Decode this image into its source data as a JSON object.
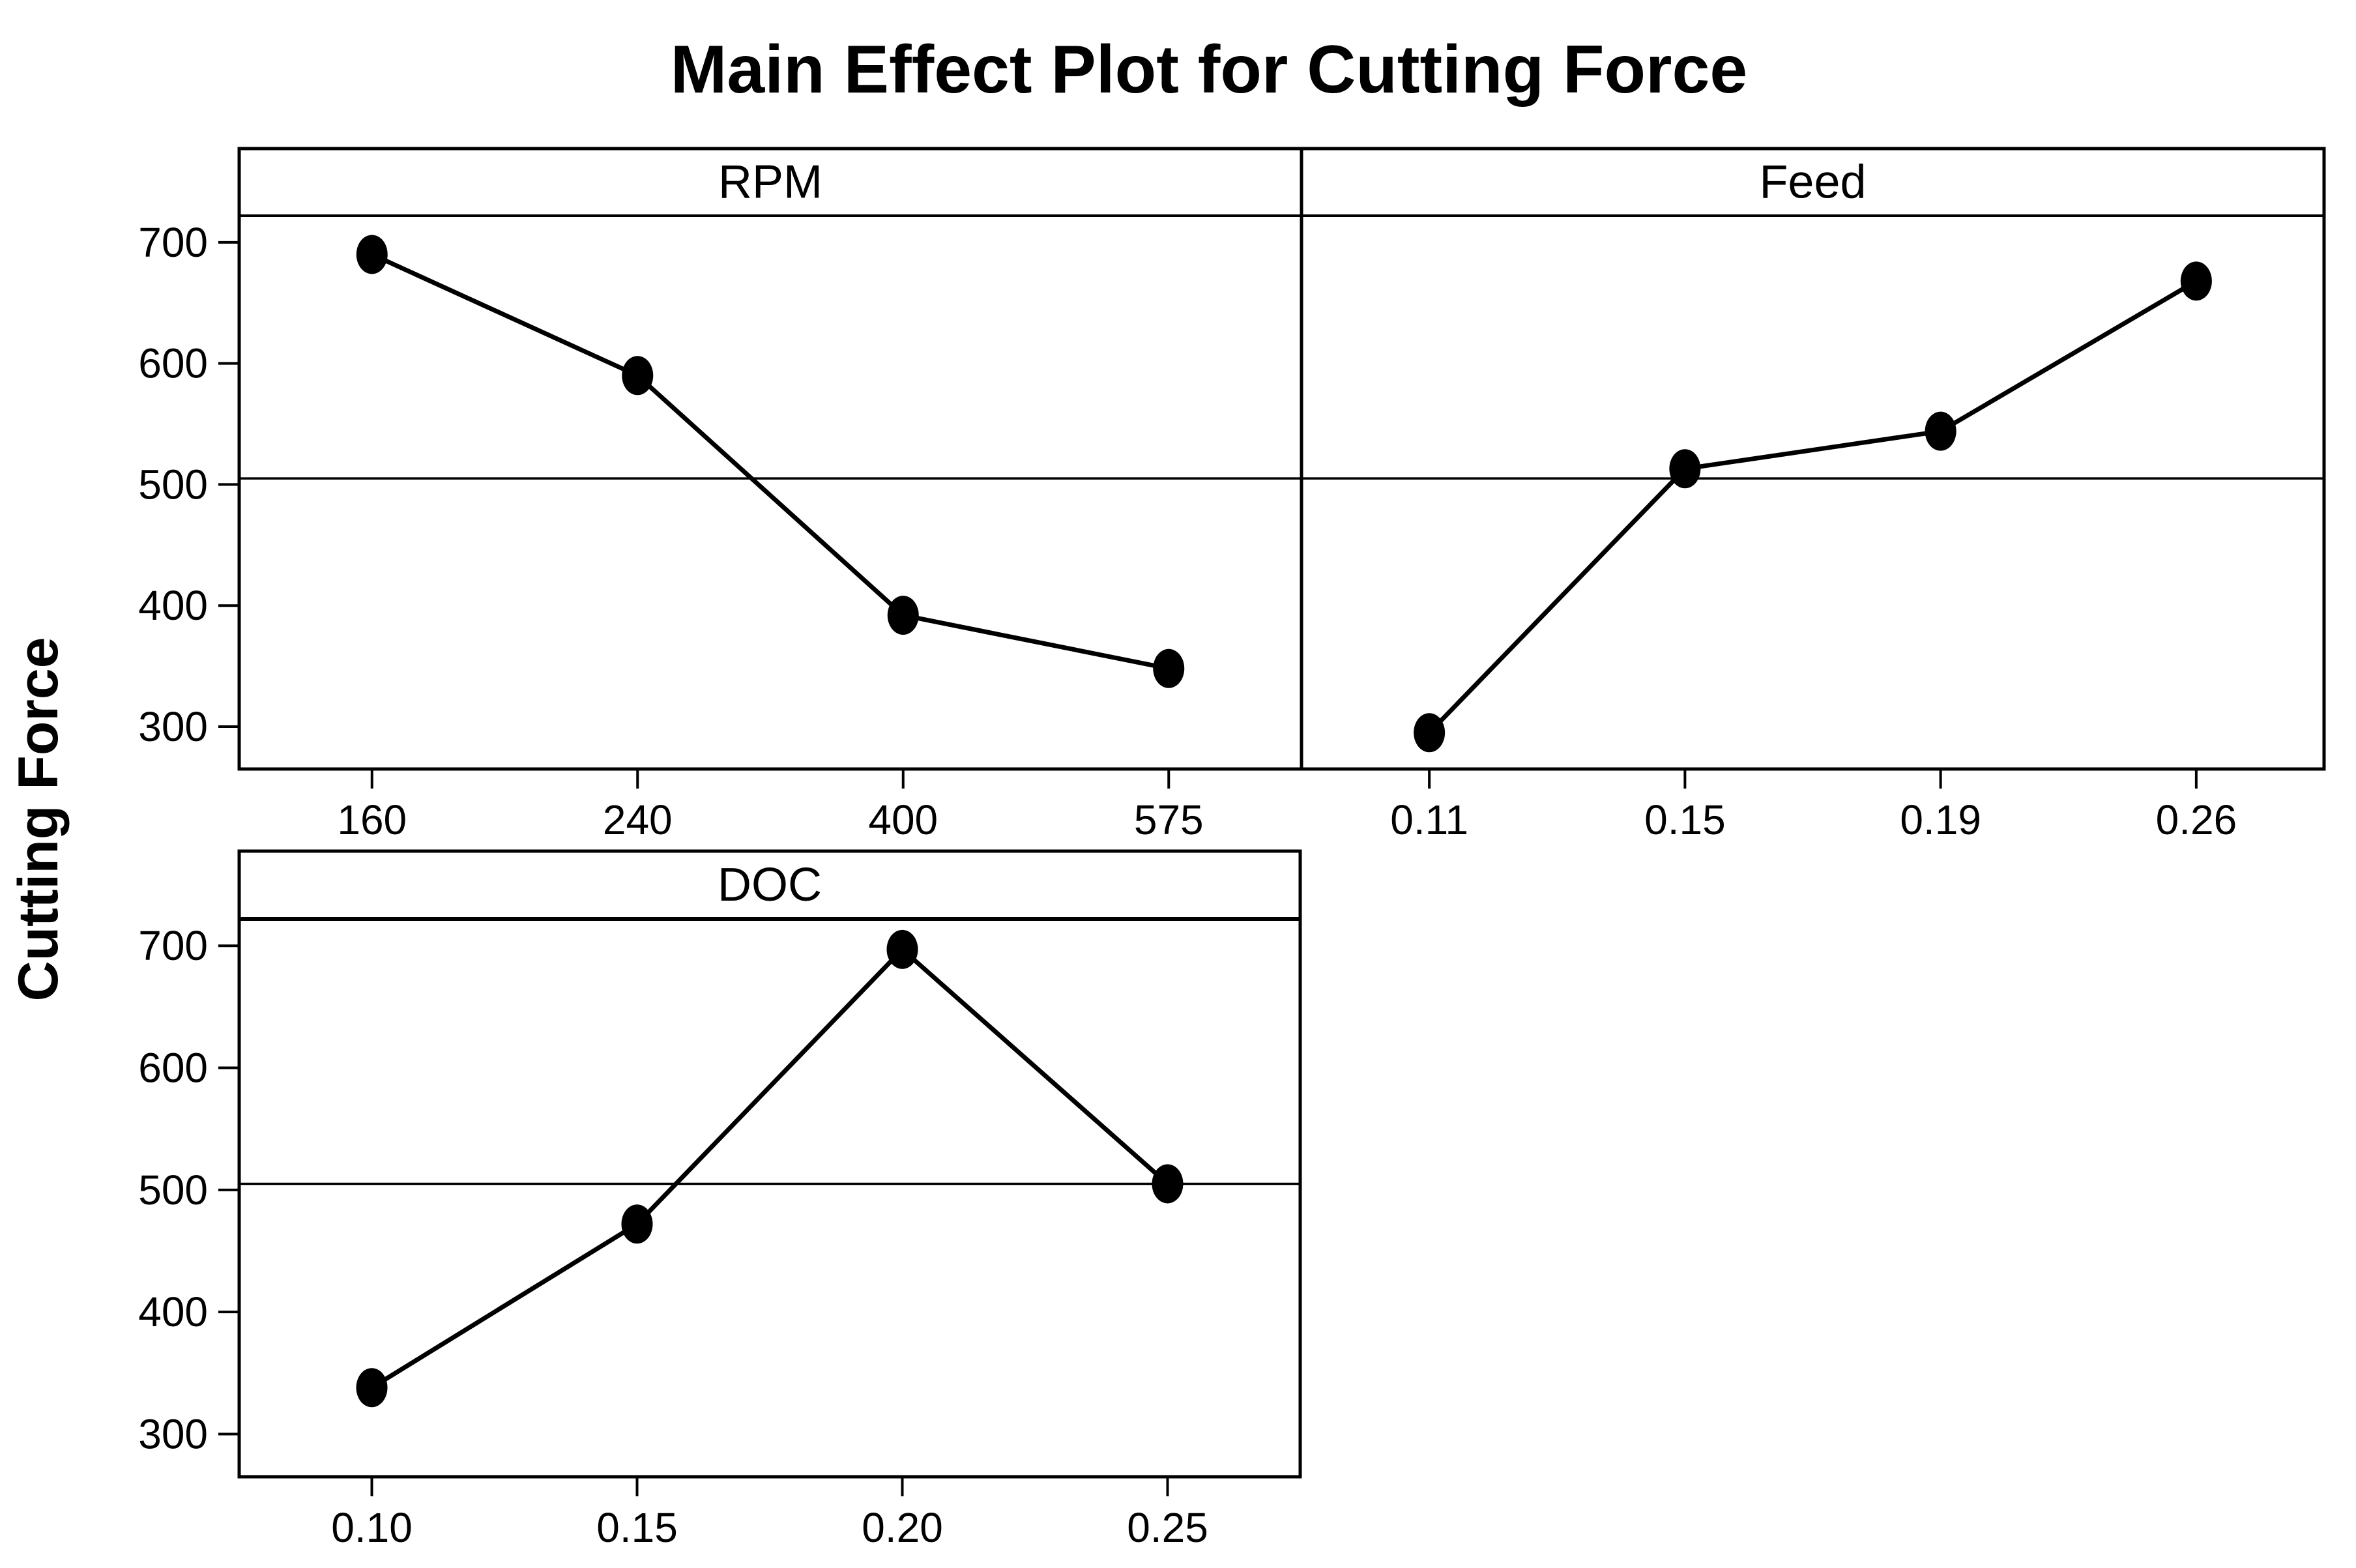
{
  "title": "Main Effect Plot for Cutting Force",
  "ylabel": "Cutting Force",
  "colors": {
    "foreground": "#000000",
    "background": "#ffffff"
  },
  "chart_data": {
    "type": "line",
    "title": "Main Effect Plot for Cutting Force",
    "ylabel": "Cutting Force",
    "grand_mean_line": 505,
    "ylim": [
      265,
      722
    ],
    "yticks": [
      300,
      400,
      500,
      600,
      700
    ],
    "grid": "mean-reference-line-only",
    "marker": "filled-circle",
    "panels": [
      {
        "label": "RPM",
        "categories": [
          "160",
          "240",
          "400",
          "575"
        ],
        "values": [
          690,
          590,
          392,
          348
        ]
      },
      {
        "label": "Feed",
        "categories": [
          "0.11",
          "0.15",
          "0.19",
          "0.26"
        ],
        "values": [
          295,
          513,
          544,
          668
        ]
      },
      {
        "label": "DOC",
        "categories": [
          "0.10",
          "0.15",
          "0.20",
          "0.25"
        ],
        "values": [
          338,
          472,
          697,
          505
        ]
      }
    ]
  }
}
